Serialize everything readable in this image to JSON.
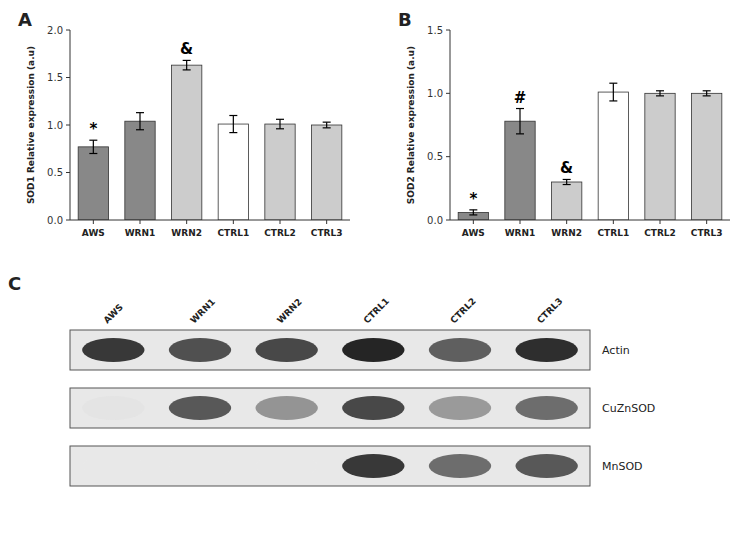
{
  "chart_data": [
    {
      "type": "bar",
      "title": "A",
      "categories": [
        "AWS",
        "WRN1",
        "WRN2",
        "CTRL1",
        "CTRL2",
        "CTRL3"
      ],
      "values": [
        0.77,
        1.04,
        1.63,
        1.01,
        1.01,
        1.0
      ],
      "errors": [
        0.07,
        0.09,
        0.05,
        0.09,
        0.05,
        0.03
      ],
      "colors": [
        "#888888",
        "#888888",
        "#cccccc",
        "#ffffff",
        "#cccccc",
        "#cccccc"
      ],
      "ylabel": "SOD1 Relative expression (a.u)",
      "ylim": [
        0.0,
        2.0
      ],
      "yticks": [
        {
          "value": 0.0,
          "label": "0.0"
        },
        0.5,
        {
          "value": 1.0,
          "label": "1.0"
        },
        1.5,
        {
          "value": 2.0,
          "label": "2.0"
        }
      ],
      "annotations": [
        {
          "bar": 0,
          "text": "*"
        },
        {
          "bar": 2,
          "text": "&"
        }
      ],
      "grid": false
    },
    {
      "type": "bar",
      "title": "B",
      "categories": [
        "AWS",
        "WRN1",
        "WRN2",
        "CTRL1",
        "CTRL2",
        "CTRL3"
      ],
      "values": [
        0.06,
        0.78,
        0.3,
        1.01,
        1.0,
        1.0
      ],
      "errors": [
        0.02,
        0.1,
        0.02,
        0.07,
        0.02,
        0.02
      ],
      "colors": [
        "#888888",
        "#888888",
        "#cccccc",
        "#ffffff",
        "#cccccc",
        "#cccccc"
      ],
      "ylabel": "SOD2 Relative expression (a.u)",
      "ylim": [
        0.0,
        1.5
      ],
      "yticks": [
        {
          "value": 0.0,
          "label": "0.0"
        },
        0.5,
        {
          "value": 1.0,
          "label": "1.0"
        },
        1.5
      ],
      "annotations": [
        {
          "bar": 0,
          "text": "*"
        },
        {
          "bar": 1,
          "text": "#"
        },
        {
          "bar": 2,
          "text": "&"
        }
      ],
      "grid": false
    },
    {
      "type": "heatmap",
      "title": "C",
      "categories": [
        "AWS",
        "WRN1",
        "WRN2",
        "CTRL1",
        "CTRL2",
        "CTRL3"
      ],
      "series": [
        {
          "name": "Actin",
          "values": [
            0.88,
            0.82,
            0.84,
            0.92,
            0.78,
            0.9
          ]
        },
        {
          "name": "CuZnSOD",
          "values": [
            0.18,
            0.8,
            0.62,
            0.84,
            0.6,
            0.74
          ]
        },
        {
          "name": "MnSOD",
          "values": [
            0.02,
            0.04,
            0.04,
            0.88,
            0.74,
            0.8
          ]
        }
      ],
      "tick_labels": "x"
    }
  ]
}
